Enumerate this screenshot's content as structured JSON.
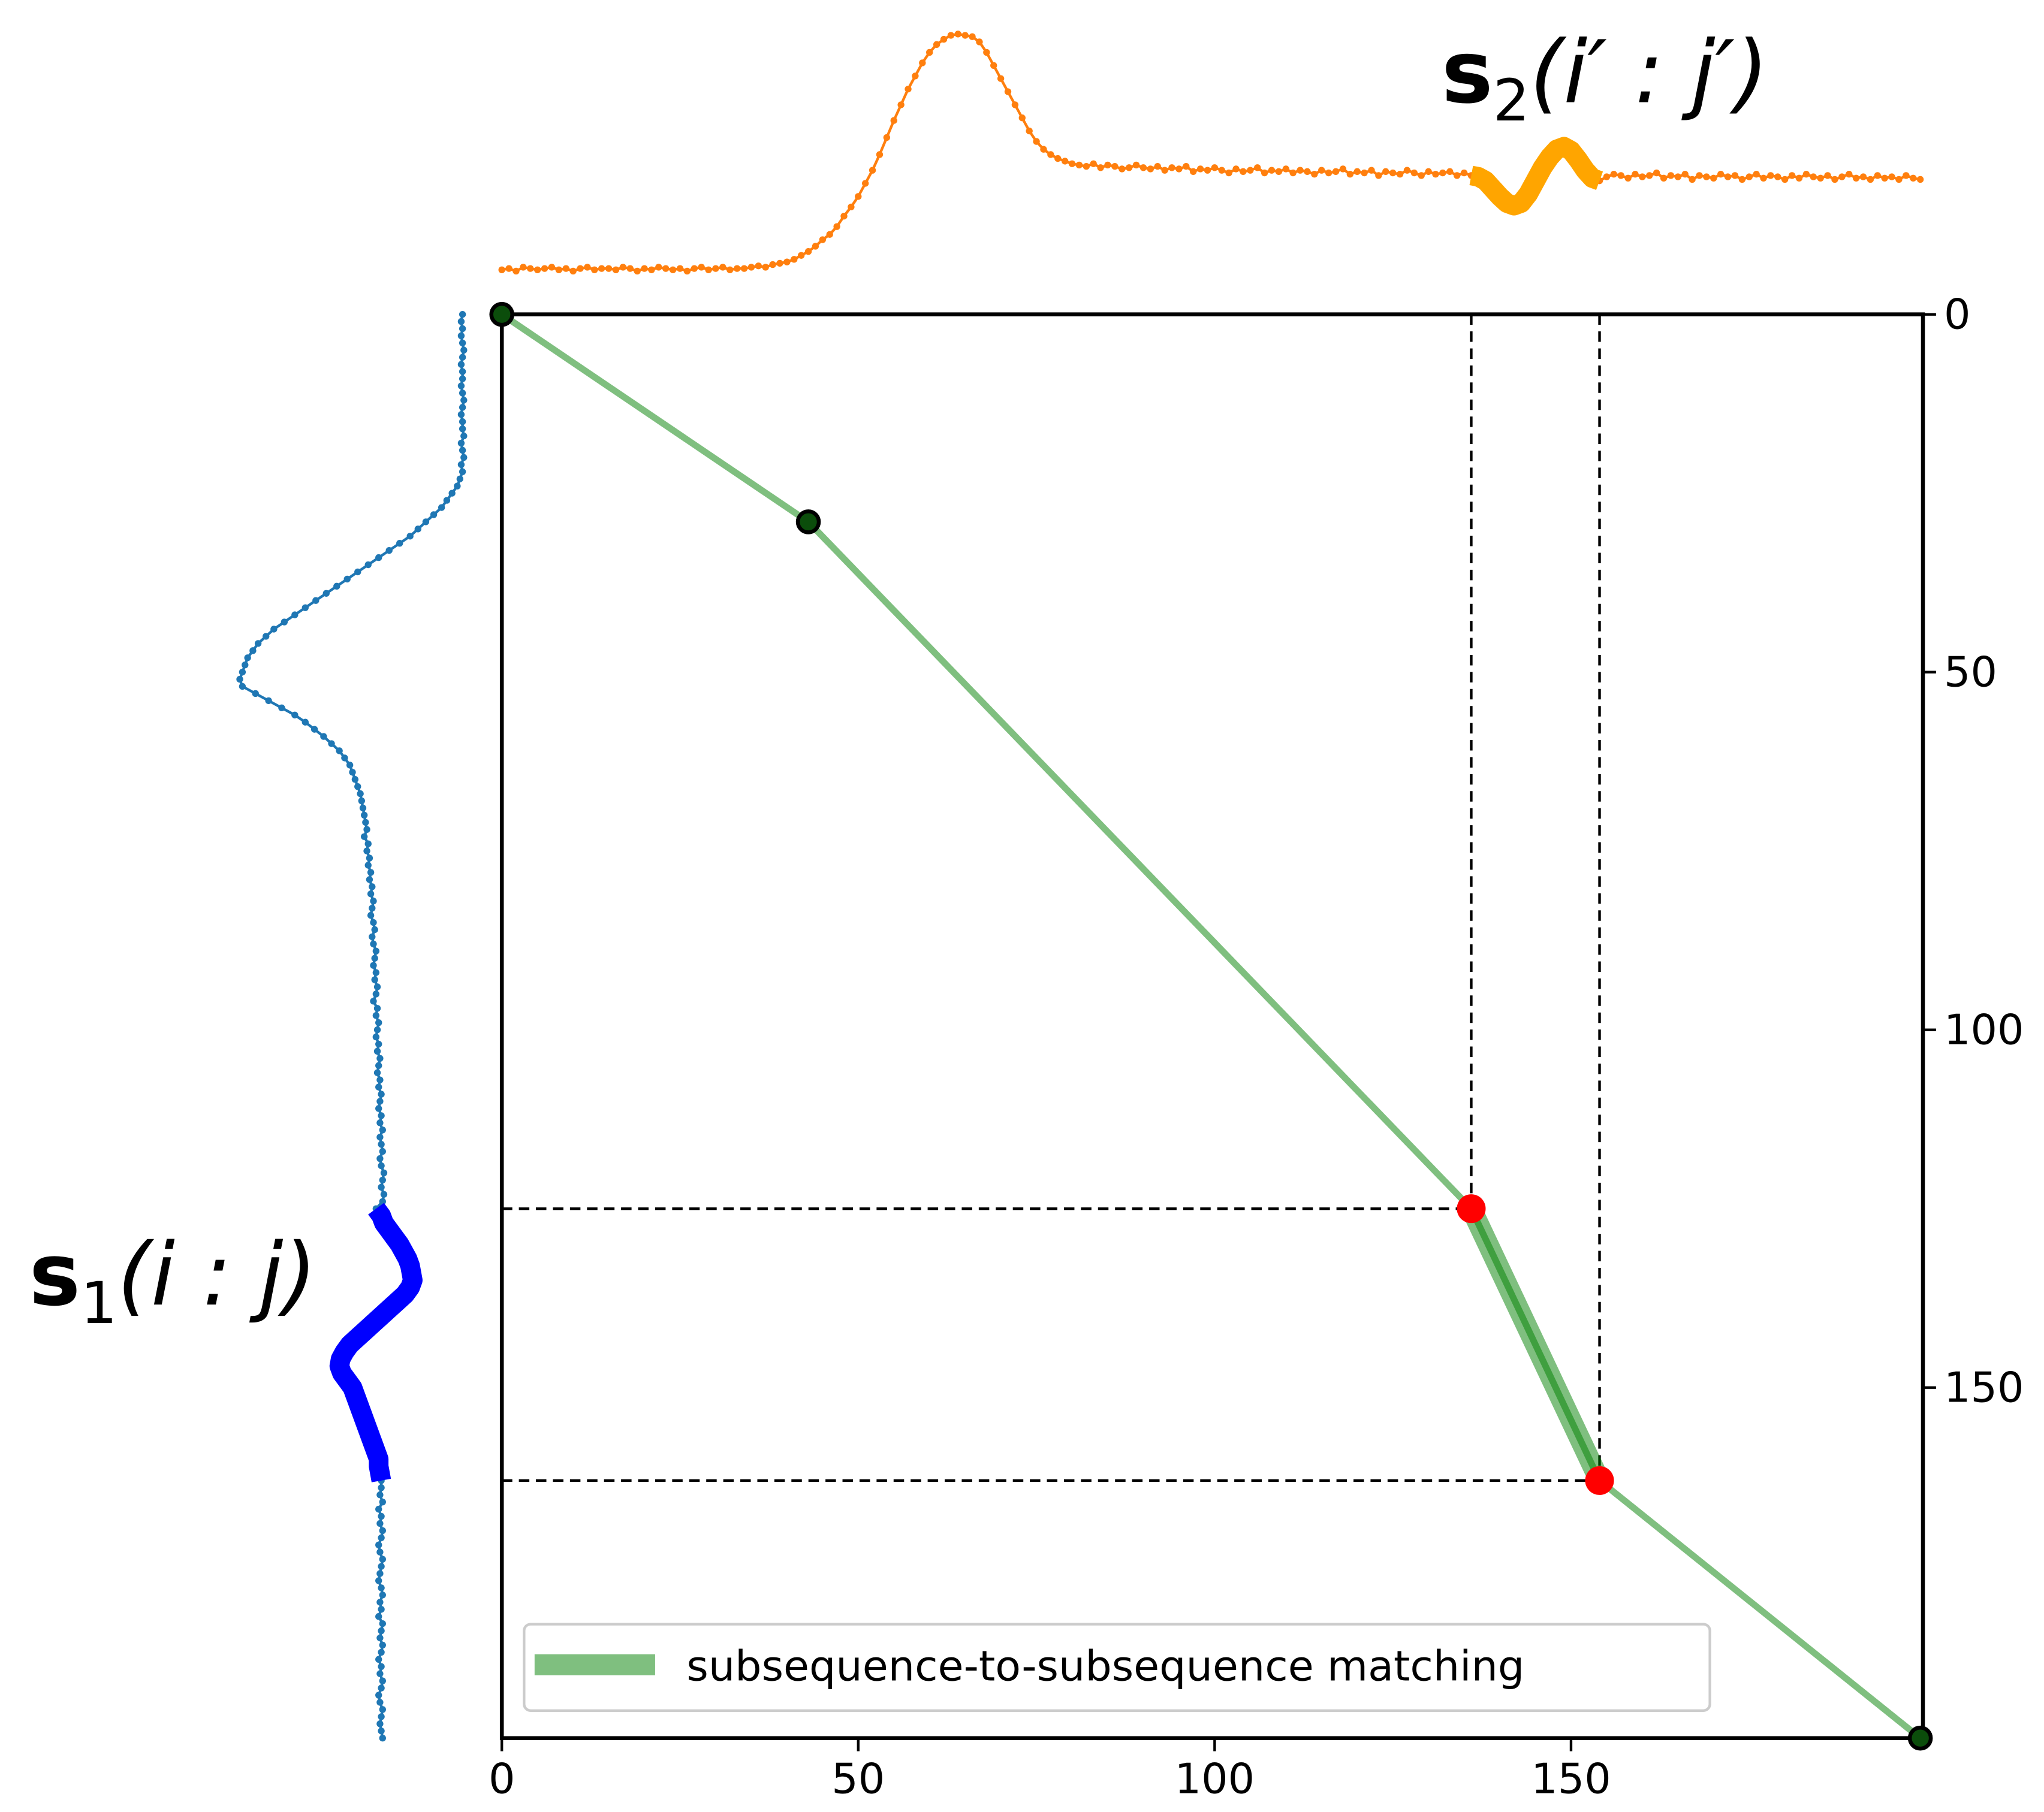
{
  "chart_data": {
    "type": "warping",
    "xlim": [
      0,
      199
    ],
    "ylim": [
      0,
      199
    ],
    "xticks": [
      0,
      50,
      100,
      150
    ],
    "yticks": [
      0,
      50,
      100,
      150
    ],
    "path": {
      "x": [
        0,
        43,
        136,
        154,
        199
      ],
      "y": [
        0,
        29,
        125,
        163,
        199
      ],
      "color": "#008000",
      "point_color": "#0b4d0b",
      "match_color": "#ff0000"
    },
    "highlight_segment": [
      2,
      3
    ],
    "legend": {
      "label": "subsequence-to-subsequence matching",
      "loc": "lower center"
    },
    "series": [
      {
        "label": {
          "symbol": "s",
          "sub": "1",
          "args": "(i : j)"
        },
        "color": "#1f77b4",
        "highlight_color": "#0000ff",
        "orientation": "vertical",
        "values": [
          2,
          3,
          2,
          3,
          2,
          1,
          2,
          3,
          2,
          2,
          3,
          2,
          1,
          2,
          3,
          2,
          2,
          1,
          3,
          2,
          1,
          3,
          2,
          4,
          6,
          10,
          14,
          18,
          24,
          30,
          36,
          42,
          50,
          58,
          66,
          74,
          82,
          90,
          98,
          106,
          114,
          122,
          130,
          138,
          146,
          152,
          158,
          162,
          166,
          168,
          170,
          172,
          170,
          160,
          150,
          140,
          130,
          122,
          115,
          108,
          102,
          96,
          92,
          88,
          86,
          84,
          82,
          80,
          79,
          78,
          77,
          76,
          75,
          77,
          74,
          75,
          73,
          74,
          72,
          73,
          71,
          72,
          70,
          71,
          72,
          70,
          69,
          71,
          70,
          68,
          69,
          70,
          68,
          69,
          67,
          68,
          70,
          67,
          68,
          66,
          67,
          68,
          66,
          67,
          65,
          66,
          67,
          65,
          66,
          64,
          65,
          66,
          64,
          65,
          63,
          65,
          64,
          63,
          65,
          64,
          62,
          63,
          64,
          62,
          63,
          68,
          64,
          62,
          58,
          54,
          50,
          47,
          44,
          42,
          41,
          40,
          42,
          46,
          52,
          58,
          64,
          70,
          76,
          82,
          88,
          92,
          95,
          96,
          94,
          90,
          86,
          84,
          82,
          80,
          78,
          76,
          74,
          72,
          70,
          68,
          66,
          66,
          65,
          64,
          64,
          65,
          63,
          66,
          64,
          65,
          63,
          64,
          66,
          65,
          63,
          64,
          65,
          66,
          64,
          63,
          65,
          64,
          66,
          63,
          64,
          65,
          63,
          64,
          66,
          64,
          65,
          63,
          64,
          66,
          65,
          63,
          64,
          65,
          64,
          63
        ]
      },
      {
        "label": {
          "symbol": "s",
          "sub": "2",
          "args": "(i′ : j′)"
        },
        "color": "#ff7f0e",
        "highlight_color": "#ffa500",
        "orientation": "horizontal",
        "values": [
          4,
          5,
          3,
          6,
          5,
          4,
          5,
          6,
          4,
          5,
          3,
          5,
          6,
          4,
          5,
          5,
          4,
          6,
          5,
          3,
          5,
          4,
          6,
          5,
          4,
          5,
          3,
          5,
          6,
          4,
          5,
          6,
          4,
          5,
          5,
          6,
          7,
          6,
          8,
          9,
          10,
          12,
          15,
          18,
          22,
          27,
          31,
          37,
          45,
          52,
          60,
          70,
          80,
          92,
          105,
          118,
          130,
          142,
          152,
          162,
          170,
          176,
          180,
          183,
          184,
          183,
          182,
          178,
          170,
          160,
          150,
          140,
          130,
          120,
          110,
          102,
          96,
          92,
          89,
          87,
          85,
          84,
          83,
          85,
          82,
          84,
          83,
          81,
          82,
          84,
          82,
          81,
          83,
          80,
          82,
          81,
          83,
          79,
          81,
          80,
          82,
          80,
          78,
          81,
          79,
          80,
          82,
          78,
          80,
          79,
          81,
          78,
          80,
          79,
          77,
          80,
          78,
          79,
          81,
          77,
          79,
          78,
          80,
          76,
          79,
          78,
          77,
          80,
          78,
          76,
          79,
          77,
          78,
          79,
          76,
          78,
          76,
          75,
          72,
          66,
          60,
          55,
          53,
          55,
          62,
          72,
          82,
          90,
          96,
          98,
          95,
          88,
          80,
          74,
          72,
          75,
          77,
          76,
          74,
          77,
          75,
          76,
          78,
          74,
          76,
          75,
          77,
          73,
          76,
          75,
          74,
          77,
          75,
          76,
          73,
          75,
          77,
          74,
          76,
          75,
          73,
          76,
          74,
          77,
          75,
          74,
          76,
          73,
          75,
          77,
          74,
          75,
          73,
          76,
          74,
          75,
          73,
          76,
          74,
          73
        ]
      }
    ]
  }
}
